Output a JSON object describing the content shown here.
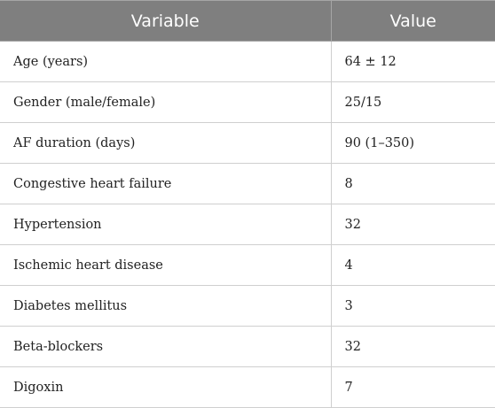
{
  "table": {
    "headers": [
      "Variable",
      "Value"
    ],
    "rows": [
      {
        "variable": "Age (years)",
        "value": "64 ± 12"
      },
      {
        "variable": "Gender (male/female)",
        "value": "25/15"
      },
      {
        "variable": "AF duration (days)",
        "value": "90 (1–350)"
      },
      {
        "variable": "Congestive heart failure",
        "value": "8"
      },
      {
        "variable": "Hypertension",
        "value": "32"
      },
      {
        "variable": "Ischemic heart disease",
        "value": "4"
      },
      {
        "variable": "Diabetes mellitus",
        "value": "3"
      },
      {
        "variable": "Beta-blockers",
        "value": "32"
      },
      {
        "variable": "Digoxin",
        "value": "7"
      }
    ]
  }
}
